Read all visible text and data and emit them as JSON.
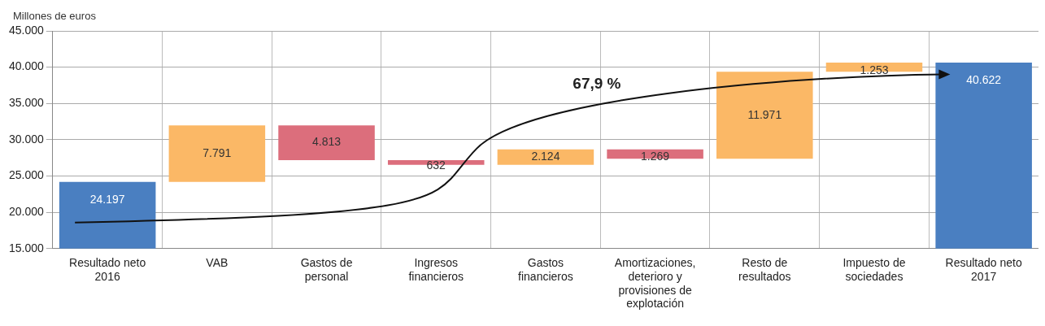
{
  "chart_data": {
    "type": "bar",
    "ylabel": "Millones de euros",
    "categories": [
      "Resultado neto 2016",
      "VAB",
      "Gastos de personal",
      "Ingresos financieros",
      "Gastos financieros",
      "Amortizaciones, deterioro y provisiones de explotación",
      "Resto de resultados",
      "Impuesto de sociedades",
      "Resultado neto 2017"
    ],
    "values": [
      24197,
      7791,
      -4813,
      -632,
      2124,
      -1269,
      11971,
      1253,
      40622
    ],
    "base": [
      null,
      24197,
      31988,
      27175,
      26543,
      28667,
      27398,
      39369,
      null
    ],
    "value_labels": [
      "24.197",
      "7.791",
      "4.813",
      "632",
      "2.124",
      "1.269",
      "11.971",
      "1.253",
      "40.622"
    ],
    "colors": [
      "#4a7fc1",
      "#fbb866",
      "#dc6e7c",
      "#dc6e7c",
      "#fbb866",
      "#dc6e7c",
      "#fbb866",
      "#fbb866",
      "#4a7fc1"
    ],
    "ylim": [
      15000,
      45000
    ],
    "yticks": [
      {
        "value": 15000,
        "label": "15.000"
      },
      {
        "value": 20000,
        "label": "20.000"
      },
      {
        "value": 25000,
        "label": "25.000"
      },
      {
        "value": 30000,
        "label": "30.000"
      },
      {
        "value": 35000,
        "label": "35.000"
      },
      {
        "value": 40000,
        "label": "40.000"
      },
      {
        "value": 45000,
        "label": "45.000"
      }
    ],
    "grid": true,
    "legend": false,
    "annotations": [
      "67,9 %"
    ]
  }
}
